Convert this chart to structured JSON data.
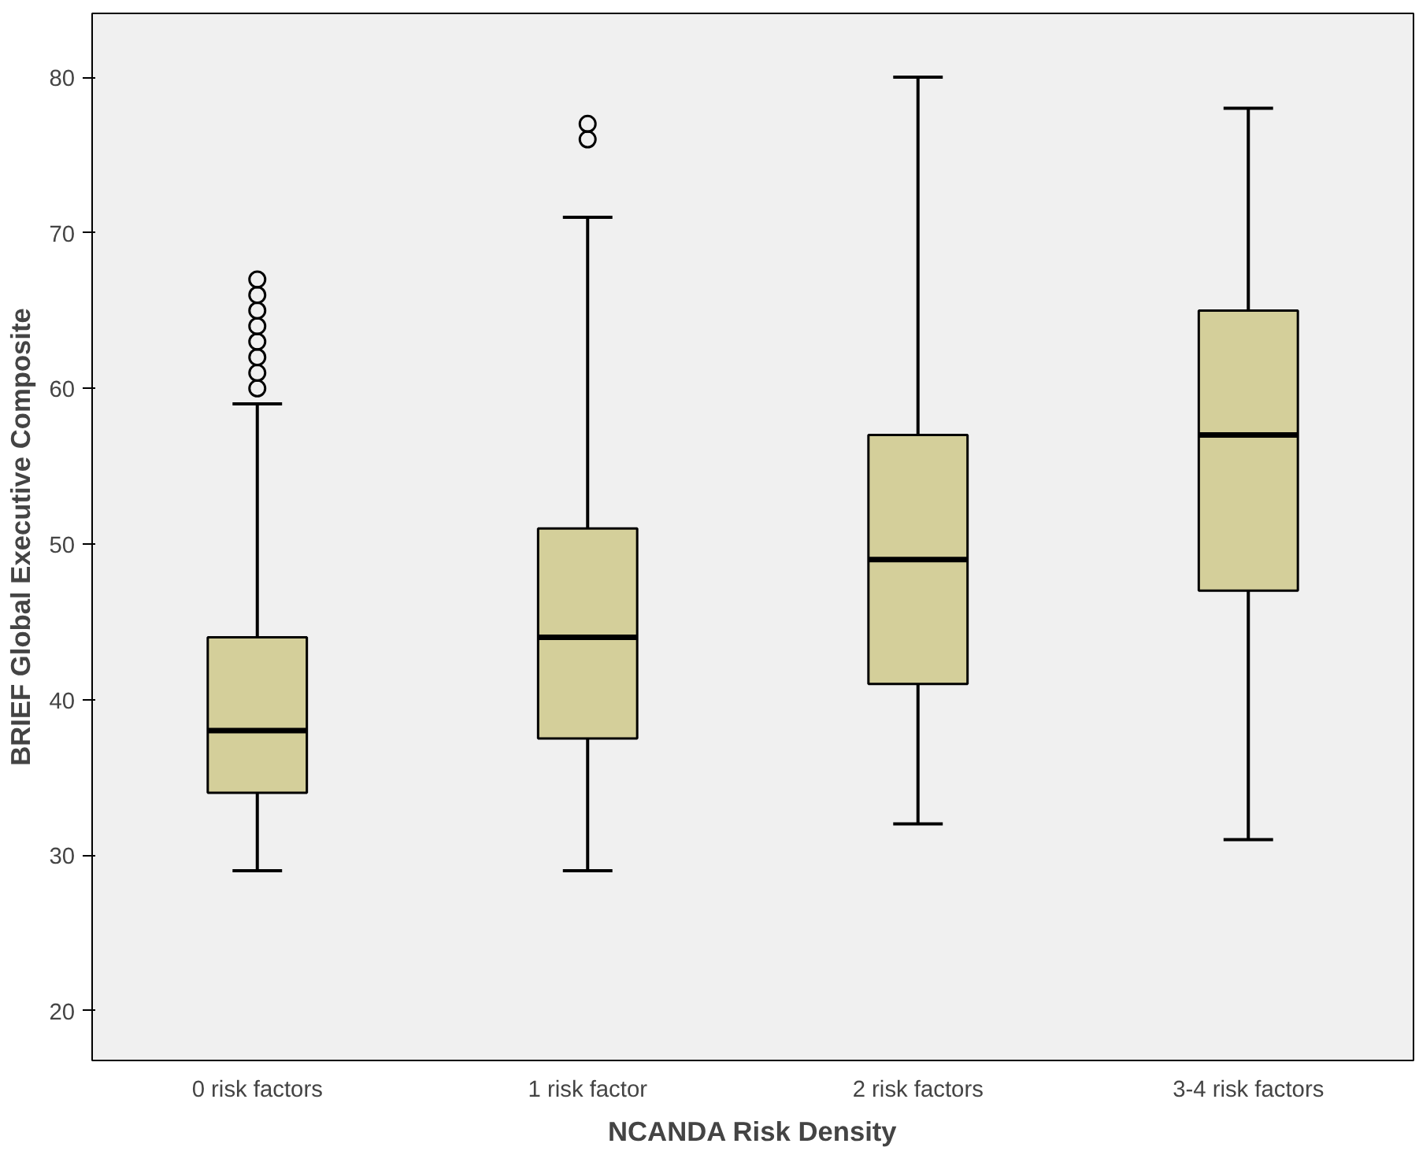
{
  "chart_data": {
    "type": "box",
    "xlabel": "NCANDA Risk Density",
    "ylabel": "BRIEF Global Executive Composite",
    "categories": [
      "0 risk factors",
      "1 risk factor",
      "2 risk factors",
      "3-4 risk factors"
    ],
    "boxes": [
      {
        "low": 29,
        "q1": 34,
        "median": 38,
        "q3": 44,
        "high": 59,
        "outliers": [
          60,
          61,
          62,
          63,
          64,
          65,
          66,
          67
        ]
      },
      {
        "low": 29,
        "q1": 37.5,
        "median": 44,
        "q3": 51,
        "high": 71,
        "outliers": [
          76,
          77
        ]
      },
      {
        "low": 32,
        "q1": 41,
        "median": 49,
        "q3": 57,
        "high": 80
      },
      {
        "low": 31,
        "q1": 47,
        "median": 57,
        "q3": 65,
        "high": 78
      }
    ],
    "color": "#d4cf9a",
    "ylim": [
      16.8,
      84.1
    ],
    "yticks": [
      20,
      30,
      40,
      50,
      60,
      70,
      80
    ],
    "grid": false
  }
}
